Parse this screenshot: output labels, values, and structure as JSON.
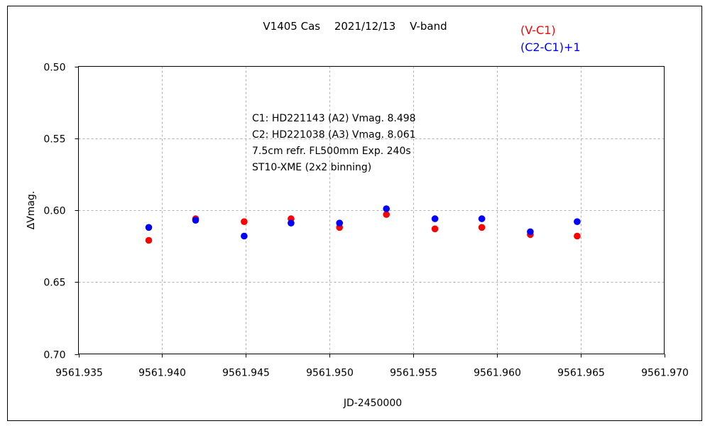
{
  "chart_data": {
    "type": "scatter",
    "title": "V1405 Cas　 2021/12/13　 V-band",
    "xlabel": "JD-2450000",
    "ylabel": "∆Vmag.",
    "xlim": [
      9561.935,
      9561.97
    ],
    "ylim": [
      0.5,
      0.7
    ],
    "y_inverted": true,
    "grid": true,
    "legend_position": "top-right",
    "x_ticks": [
      "9561.935",
      "9561.940",
      "9561.945",
      "9561.950",
      "9561.955",
      "9561.960",
      "9561.965",
      "9561.970"
    ],
    "x_tick_values": [
      9561.935,
      9561.94,
      9561.945,
      9561.95,
      9561.955,
      9561.96,
      9561.965,
      9561.97
    ],
    "y_ticks": [
      "0.50",
      "0.55",
      "0.60",
      "0.65",
      "0.70"
    ],
    "y_tick_values": [
      0.5,
      0.55,
      0.6,
      0.65,
      0.7
    ],
    "annotations": [
      "C1: HD221143 (A2) Vmag. 8.498",
      "C2: HD221038 (A3) Vmag. 8.061",
      "7.5cm refr. FL500mm Exp. 240s",
      "ST10-XME (2x2 binning)"
    ],
    "series": [
      {
        "name": "(V-C1)",
        "color": "#ff0000",
        "x": [
          9561.9392,
          9561.942,
          9561.9449,
          9561.9477,
          9561.9506,
          9561.9534,
          9561.9563,
          9561.9591,
          9561.962,
          9561.9648
        ],
        "y": [
          0.621,
          0.606,
          0.608,
          0.606,
          0.612,
          0.603,
          0.613,
          0.612,
          0.617,
          0.618
        ]
      },
      {
        "name": "(C2-C1)+1",
        "color": "#0000ff",
        "x": [
          9561.9392,
          9561.942,
          9561.9449,
          9561.9477,
          9561.9506,
          9561.9534,
          9561.9563,
          9561.9591,
          9561.962,
          9561.9648
        ],
        "y": [
          0.612,
          0.607,
          0.618,
          0.609,
          0.609,
          0.599,
          0.606,
          0.606,
          0.615,
          0.608
        ]
      }
    ]
  }
}
